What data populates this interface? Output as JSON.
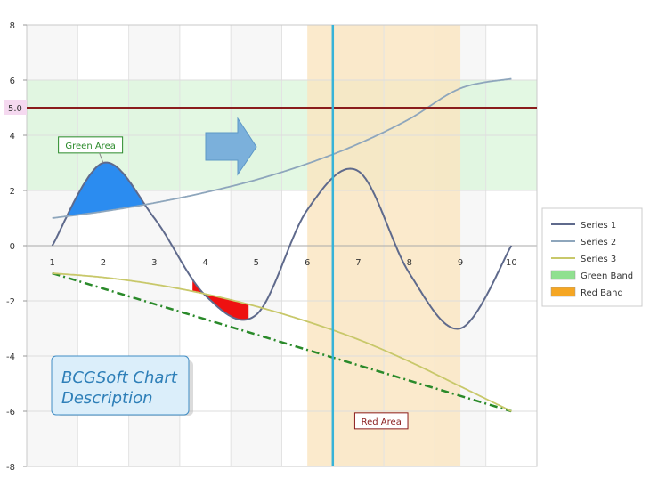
{
  "chart_data": {
    "type": "line",
    "xlim": [
      0.5,
      10.5
    ],
    "ylim": [
      -8,
      8
    ],
    "x_ticks": [
      "1",
      "2",
      "3",
      "4",
      "5",
      "6",
      "7",
      "8",
      "9",
      "10"
    ],
    "y_ticks": [
      "8",
      "6",
      "4",
      "2",
      "0",
      "-2",
      "-4",
      "-6",
      "-8"
    ],
    "grid": true,
    "legend_position": "right",
    "series": [
      {
        "name": "Series 1",
        "color": "#5f6a8c",
        "x": [
          1,
          2,
          3,
          4,
          5,
          6,
          7,
          8,
          9,
          10
        ],
        "y": [
          0,
          3,
          1,
          -1.8,
          -2.5,
          1.3,
          2.7,
          -1.0,
          -3.0,
          0
        ]
      },
      {
        "name": "Series 2",
        "color": "#8ea6bc",
        "x": [
          1,
          2,
          3,
          4,
          5,
          6,
          7,
          8,
          9,
          10
        ],
        "y": [
          1.0,
          1.24,
          1.55,
          1.93,
          2.39,
          2.97,
          3.69,
          4.59,
          5.7,
          6.05
        ]
      },
      {
        "name": "Series 3",
        "color": "#c8c86a",
        "x": [
          1,
          2,
          3,
          4,
          5,
          6,
          7,
          8,
          9,
          10
        ],
        "y": [
          -1.0,
          -1.15,
          -1.4,
          -1.75,
          -2.2,
          -2.75,
          -3.4,
          -4.2,
          -5.1,
          -6.0
        ]
      }
    ],
    "trend_line": {
      "x": [
        1,
        10
      ],
      "y": [
        -1.0,
        -6.0
      ],
      "color": "#2a8a2a"
    },
    "bands": [
      {
        "name": "Green Band",
        "axis": "y",
        "from": 2,
        "to": 6,
        "color": "#d9f5d9"
      },
      {
        "name": "Red Band",
        "axis": "x",
        "from": 6,
        "to": 9,
        "color": "#fae5bf"
      }
    ],
    "constant_line": {
      "axis": "y",
      "value": 5.0,
      "label": "5.0",
      "color": "#8a1c1c"
    },
    "vertical_line": {
      "axis": "x",
      "value": 6.5,
      "color": "#37b3d8"
    },
    "area_fills": [
      {
        "between": [
          "Series 1",
          "Series 2"
        ],
        "x_from": 1.28,
        "x_to": 2.85,
        "color": "#2b8cf0"
      },
      {
        "between": [
          "Series 1",
          "Series 3"
        ],
        "x_from": 3.75,
        "x_to": 4.85,
        "color": "#ee1111"
      }
    ],
    "annotations": [
      {
        "text": "Green Area",
        "x": 1.75,
        "y": 3.65,
        "color": "#2a8a2a"
      },
      {
        "text": "Red Area",
        "x": 7.45,
        "y": -6.35,
        "color": "#8a1c1c"
      }
    ],
    "description": {
      "lines": [
        "BCGSoft Chart",
        "Description"
      ]
    },
    "legend": [
      {
        "label": "Series 1",
        "kind": "line",
        "color": "#5f6a8c"
      },
      {
        "label": "Series 2",
        "kind": "line",
        "color": "#8ea6bc"
      },
      {
        "label": "Series 3",
        "kind": "line",
        "color": "#c8c86a"
      },
      {
        "label": "Green Band",
        "kind": "rect",
        "color": "#90e090"
      },
      {
        "label": "Red Band",
        "kind": "rect",
        "color": "#f5a623"
      }
    ]
  }
}
